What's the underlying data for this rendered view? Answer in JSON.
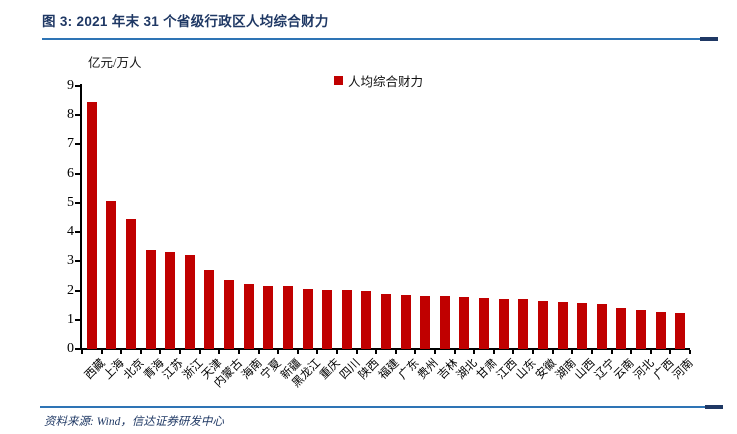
{
  "title": "图 3: 2021 年末 31 个省级行政区人均综合财力",
  "footer": {
    "source": "资料来源: Wind，信达证券研发中心"
  },
  "colors": {
    "bar_red": "#C00000",
    "title_navy": "#1F3864",
    "rule_blue": "#2E74B5",
    "axis_black": "#000000"
  },
  "chart_data": {
    "type": "bar",
    "title": "图 3: 2021 年末 31 个省级行政区人均综合财力",
    "unit_label": "亿元/万人",
    "legend": [
      "人均综合财力"
    ],
    "legend_position": "top-center",
    "grid": false,
    "ylim": [
      0,
      9
    ],
    "ytick_interval": 1,
    "yticks": [
      0,
      1,
      2,
      3,
      4,
      5,
      6,
      7,
      8,
      9
    ],
    "categories": [
      "西藏",
      "上海",
      "北京",
      "青海",
      "江苏",
      "浙江",
      "天津",
      "内蒙古",
      "海南",
      "宁夏",
      "新疆",
      "黑龙江",
      "重庆",
      "四川",
      "陕西",
      "福建",
      "广东",
      "贵州",
      "吉林",
      "湖北",
      "甘肃",
      "江西",
      "山东",
      "安徽",
      "湖南",
      "山西",
      "辽宁",
      "云南",
      "河北",
      "广西",
      "河南"
    ],
    "values": [
      8.45,
      5.05,
      4.45,
      3.4,
      3.32,
      3.22,
      2.72,
      2.35,
      2.21,
      2.17,
      2.14,
      2.06,
      2.02,
      2.02,
      1.97,
      1.89,
      1.85,
      1.82,
      1.81,
      1.78,
      1.73,
      1.72,
      1.71,
      1.64,
      1.6,
      1.58,
      1.53,
      1.42,
      1.32,
      1.28,
      1.22
    ]
  }
}
